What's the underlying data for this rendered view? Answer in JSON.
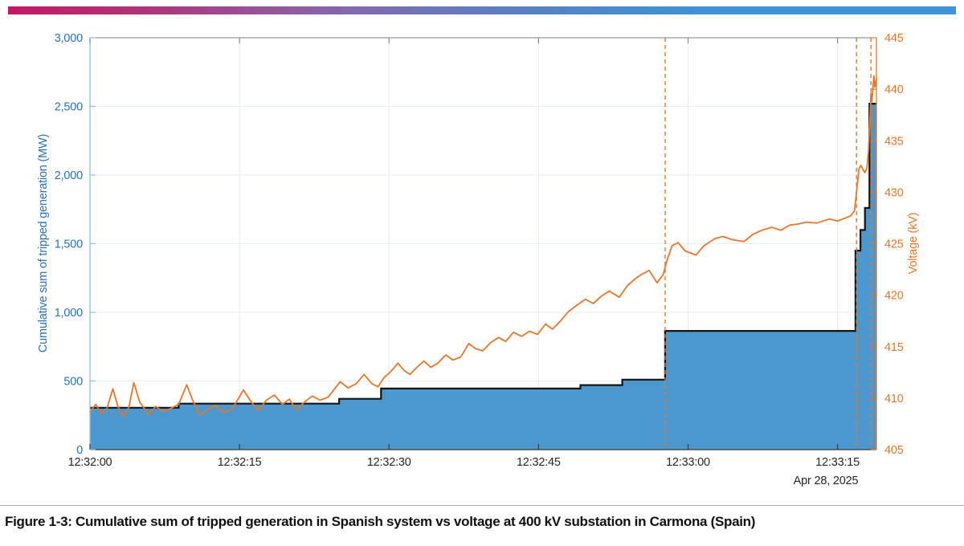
{
  "page": {
    "figure_caption": "Figure 1-3: Cumulative sum of tripped generation in Spanish system vs voltage at 400 kV substation in Carmona (Spain)"
  },
  "header_bar": {
    "gradient_colors": [
      "#C11A61",
      "#8A63A8",
      "#5B7FC0",
      "#3E93D4"
    ]
  },
  "colors": {
    "blue_fill": "#4C97CE",
    "step_outline": "#141414",
    "orange": "#E4762D",
    "left_axis_line": "#93B9DF",
    "left_axis_text": "#2C6FB5",
    "x_axis_text": "#262626",
    "grid_horizontal": "#E4EEF7",
    "grid_vertical": "#E8E8E8",
    "top_border": "#7F7F7F",
    "bottom_border": "#3D3D3D",
    "caption_text": "#111111",
    "divider": "#ABABAB"
  },
  "chart_data": {
    "type": "combo",
    "subtype": [
      "step-area",
      "line"
    ],
    "title": "",
    "grid": {
      "horizontal": true,
      "vertical": true,
      "legend": "none"
    },
    "x_axis": {
      "unit": "time of day",
      "range_seconds": [
        0,
        78.9
      ],
      "tick_seconds": [
        0,
        15,
        30,
        45,
        60,
        75
      ],
      "tick_labels": [
        "12:32:00",
        "12:32:15",
        "12:32:30",
        "12:32:45",
        "12:33:00",
        "12:33:15"
      ],
      "date_label": "Apr 28, 2025"
    },
    "y_left": {
      "label": "Cumulative sum of tripped generation (MW)",
      "range": [
        0,
        3000
      ],
      "tick_values": [
        0,
        500,
        1000,
        1500,
        2000,
        2500,
        3000
      ],
      "tick_labels": [
        "0",
        "500",
        "1,000",
        "1,500",
        "2,000",
        "2,500",
        "3,000"
      ]
    },
    "y_right": {
      "label": "Voltage (kV)",
      "range": [
        405,
        445
      ],
      "tick_values": [
        405,
        410,
        415,
        420,
        425,
        430,
        435,
        440,
        445
      ],
      "tick_labels": [
        "405",
        "410",
        "415",
        "420",
        "425",
        "430",
        "435",
        "440",
        "445"
      ]
    },
    "series": [
      {
        "name": "Cumulative sum of tripped generation (MW)",
        "type": "step_area",
        "axis": "left",
        "fill": "#4C97CE",
        "stroke": "#141414",
        "points_t_mw": [
          [
            0,
            305
          ],
          [
            8.9,
            335
          ],
          [
            25.0,
            370
          ],
          [
            29.2,
            445
          ],
          [
            49.2,
            470
          ],
          [
            53.4,
            510
          ],
          [
            57.7,
            865
          ],
          [
            76.8,
            1450
          ],
          [
            77.3,
            1600
          ],
          [
            77.75,
            1760
          ],
          [
            78.2,
            2520
          ]
        ]
      },
      {
        "name": "Voltage (kV)",
        "type": "line",
        "axis": "right",
        "stroke": "#E4762D",
        "points_t_kv": [
          [
            0,
            408.7
          ],
          [
            0.6,
            409.4
          ],
          [
            1.1,
            408.5
          ],
          [
            1.7,
            409.0
          ],
          [
            2.3,
            410.9
          ],
          [
            2.8,
            409.2
          ],
          [
            3.3,
            408.2
          ],
          [
            3.9,
            409.1
          ],
          [
            4.4,
            411.5
          ],
          [
            5.0,
            409.6
          ],
          [
            5.9,
            408.4
          ],
          [
            6.6,
            409.2
          ],
          [
            7.3,
            408.7
          ],
          [
            8.1,
            409.0
          ],
          [
            8.9,
            409.4
          ],
          [
            9.7,
            411.3
          ],
          [
            10.3,
            409.8
          ],
          [
            11.0,
            408.3
          ],
          [
            11.8,
            408.9
          ],
          [
            12.6,
            409.3
          ],
          [
            13.4,
            408.6
          ],
          [
            14.3,
            409.0
          ],
          [
            15.4,
            410.8
          ],
          [
            16.2,
            409.6
          ],
          [
            16.9,
            408.8
          ],
          [
            17.7,
            409.8
          ],
          [
            18.5,
            410.3
          ],
          [
            19.3,
            409.4
          ],
          [
            20.0,
            409.9
          ],
          [
            20.7,
            408.9
          ],
          [
            21.5,
            409.6
          ],
          [
            22.3,
            410.2
          ],
          [
            23.1,
            409.8
          ],
          [
            23.9,
            410.1
          ],
          [
            25.1,
            411.6
          ],
          [
            25.9,
            411.0
          ],
          [
            26.7,
            411.4
          ],
          [
            27.5,
            412.3
          ],
          [
            28.3,
            411.4
          ],
          [
            28.9,
            411.1
          ],
          [
            29.5,
            412.0
          ],
          [
            30.2,
            412.6
          ],
          [
            30.9,
            413.4
          ],
          [
            31.5,
            412.7
          ],
          [
            32.1,
            412.3
          ],
          [
            32.8,
            413.0
          ],
          [
            33.5,
            413.6
          ],
          [
            34.2,
            413.0
          ],
          [
            34.9,
            413.4
          ],
          [
            35.7,
            414.2
          ],
          [
            36.4,
            413.7
          ],
          [
            37.2,
            414.0
          ],
          [
            38.0,
            415.3
          ],
          [
            38.7,
            414.8
          ],
          [
            39.4,
            414.6
          ],
          [
            40.2,
            415.4
          ],
          [
            41.0,
            415.9
          ],
          [
            41.7,
            415.5
          ],
          [
            42.5,
            416.4
          ],
          [
            43.3,
            416.0
          ],
          [
            44.1,
            416.5
          ],
          [
            44.9,
            416.2
          ],
          [
            45.7,
            417.2
          ],
          [
            46.4,
            416.7
          ],
          [
            47.2,
            417.5
          ],
          [
            48.0,
            418.4
          ],
          [
            48.8,
            419.0
          ],
          [
            49.7,
            419.6
          ],
          [
            50.5,
            419.2
          ],
          [
            51.3,
            419.9
          ],
          [
            52.1,
            420.4
          ],
          [
            53.1,
            419.8
          ],
          [
            53.9,
            420.9
          ],
          [
            54.7,
            421.6
          ],
          [
            55.3,
            422.0
          ],
          [
            56.1,
            422.4
          ],
          [
            56.9,
            421.2
          ],
          [
            57.5,
            422.0
          ],
          [
            57.9,
            423.4
          ],
          [
            58.4,
            424.8
          ],
          [
            59.0,
            425.1
          ],
          [
            59.7,
            424.3
          ],
          [
            60.8,
            423.9
          ],
          [
            61.6,
            424.8
          ],
          [
            62.7,
            425.5
          ],
          [
            63.5,
            425.7
          ],
          [
            64.4,
            425.4
          ],
          [
            65.6,
            425.2
          ],
          [
            66.5,
            425.9
          ],
          [
            67.4,
            426.3
          ],
          [
            68.4,
            426.6
          ],
          [
            69.3,
            426.3
          ],
          [
            70.2,
            426.8
          ],
          [
            71.0,
            426.9
          ],
          [
            71.9,
            427.1
          ],
          [
            72.9,
            427.0
          ],
          [
            74.2,
            427.4
          ],
          [
            75.0,
            427.2
          ],
          [
            75.8,
            427.5
          ],
          [
            76.3,
            427.7
          ],
          [
            76.7,
            428.2
          ],
          [
            76.95,
            430.4
          ],
          [
            77.15,
            432.3
          ],
          [
            77.35,
            432.6
          ],
          [
            77.55,
            432.2
          ],
          [
            77.75,
            431.9
          ],
          [
            77.95,
            432.4
          ],
          [
            78.1,
            434.0
          ],
          [
            78.25,
            437.0
          ],
          [
            78.35,
            439.6
          ],
          [
            78.45,
            438.8
          ],
          [
            78.55,
            440.2
          ],
          [
            78.65,
            441.3
          ],
          [
            78.75,
            440.2
          ],
          [
            78.9,
            441.0
          ]
        ]
      }
    ],
    "event_lines": {
      "style": "dashed",
      "color": "#E4762D",
      "times_seconds": [
        57.7,
        76.9,
        78.35
      ]
    }
  }
}
